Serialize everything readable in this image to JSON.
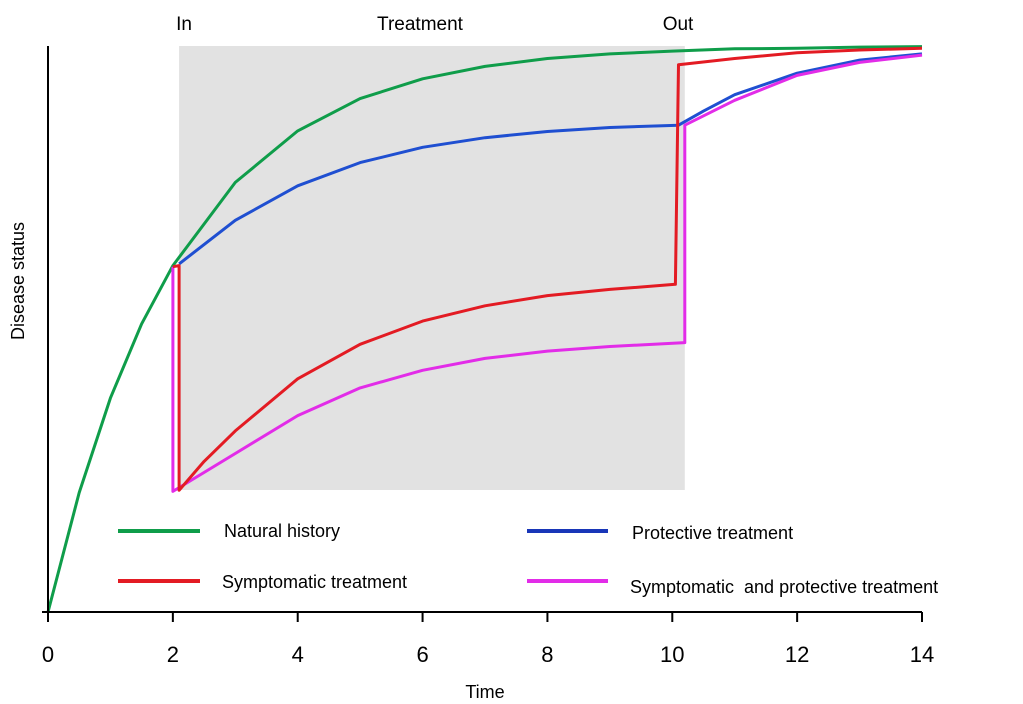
{
  "chart_data": {
    "type": "line",
    "xlabel": "Time",
    "ylabel": "Disease status",
    "xlim": [
      0,
      14
    ],
    "ylim": [
      0,
      100
    ],
    "x_ticks": [
      "0",
      "2",
      "4",
      "6",
      "8",
      "10",
      "12",
      "14"
    ],
    "grid": false,
    "legend_position": "bottom-inside",
    "annotations": {
      "treatment_start_label": "In",
      "treatment_region_label": "Treatment",
      "treatment_end_label": "Out",
      "treatment_period": [
        2.1,
        10.2
      ]
    },
    "series": [
      {
        "name": "Natural history",
        "color": "#0f9d4a",
        "x": [
          0,
          0.5,
          1,
          1.5,
          2,
          3,
          4,
          5,
          6,
          7,
          8,
          9,
          10,
          11,
          12,
          13,
          14
        ],
        "y": [
          0,
          21.1,
          37.8,
          50.9,
          61.2,
          75.9,
          85.0,
          90.7,
          94.2,
          96.4,
          97.8,
          98.6,
          99.1,
          99.5,
          99.6,
          99.8,
          99.9
        ]
      },
      {
        "name": "Protective treatment",
        "color": "#1f4fd1",
        "x": [
          2.1,
          3,
          4,
          5,
          6,
          7,
          8,
          9,
          10.1,
          10.5,
          11,
          12,
          13,
          14
        ],
        "y": [
          61.5,
          69.2,
          75.3,
          79.4,
          82.1,
          83.8,
          84.9,
          85.6,
          86.0,
          88.5,
          91.4,
          95.2,
          97.5,
          98.6
        ]
      },
      {
        "name": "Symptomatic treatment",
        "color": "#e31b23",
        "x": [
          2.0,
          2.1,
          2.1,
          2.5,
          3,
          4,
          5,
          6,
          7,
          8,
          9,
          10.05,
          10.1,
          11,
          12,
          13,
          14
        ],
        "y": [
          61.0,
          61.2,
          21.5,
          26.6,
          32.0,
          41.2,
          47.3,
          51.4,
          54.1,
          55.9,
          57.0,
          57.9,
          96.7,
          97.8,
          98.8,
          99.3,
          99.6
        ]
      },
      {
        "name": "Symptomatic  and protective treatment",
        "color": "#e22ce8",
        "x": [
          2.0,
          2.0,
          3,
          4,
          5,
          6,
          7,
          8,
          9,
          10.2,
          10.2,
          11,
          12,
          13,
          14
        ],
        "y": [
          61.0,
          21.3,
          28.0,
          34.7,
          39.6,
          42.7,
          44.8,
          46.1,
          46.9,
          47.6,
          86.0,
          90.4,
          94.8,
          97.1,
          98.4
        ]
      }
    ]
  }
}
